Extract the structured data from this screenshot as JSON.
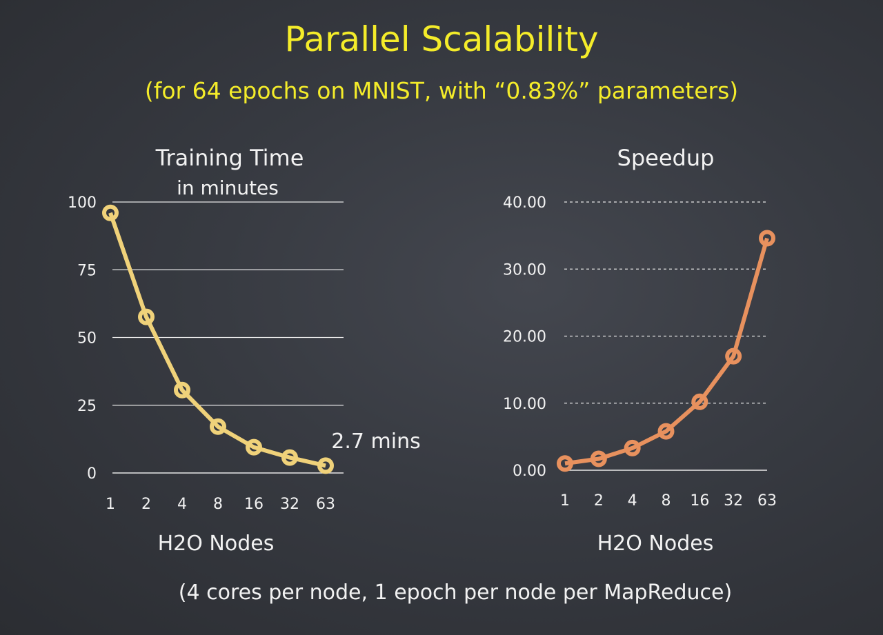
{
  "title": "Parallel Scalability",
  "subtitle": "(for 64 epochs on MNIST, with “0.83%” parameters)",
  "footnote": "(4 cores per node, 1 epoch per node per MapReduce)",
  "colors": {
    "background": "#33363c",
    "title": "#f4ec2a",
    "training_line": "#f0d27a",
    "speedup_line": "#e8915e",
    "text": "#f2f2f2"
  },
  "chart_data": [
    {
      "type": "line",
      "title": "Training Time",
      "subtitle": "in minutes",
      "xlabel": "H2O Nodes",
      "ylabel": "",
      "categories": [
        "1",
        "2",
        "4",
        "8",
        "16",
        "32",
        "63"
      ],
      "values": [
        96.0,
        57.6,
        30.6,
        17.1,
        9.5,
        5.7,
        2.7
      ],
      "ylim": [
        0,
        100
      ],
      "yticks": [
        "0",
        "25",
        "50",
        "75",
        "100"
      ],
      "ytick_values": [
        0,
        25,
        50,
        75,
        100
      ],
      "grid": "solid",
      "annotation": "2.7 mins",
      "color": "#f0d27a"
    },
    {
      "type": "line",
      "title": "Speedup",
      "xlabel": "H2O Nodes",
      "ylabel": "",
      "categories": [
        "1",
        "2",
        "4",
        "8",
        "16",
        "32",
        "63"
      ],
      "values": [
        1.0,
        1.7,
        3.3,
        5.8,
        10.2,
        17.0,
        34.6
      ],
      "ylim": [
        0,
        40
      ],
      "yticks": [
        "0.00",
        "10.00",
        "20.00",
        "30.00",
        "40.00"
      ],
      "ytick_values": [
        0,
        10,
        20,
        30,
        40
      ],
      "grid": "dashed",
      "color": "#e8915e"
    }
  ]
}
